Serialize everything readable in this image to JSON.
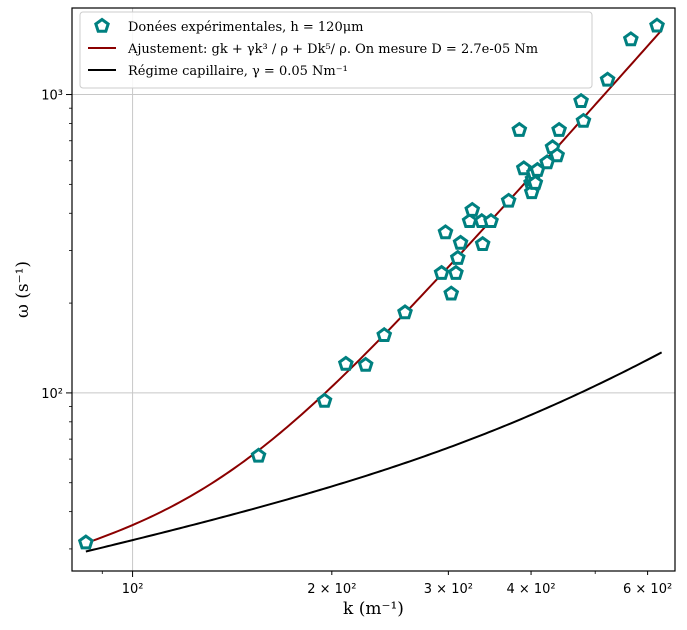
{
  "chart_data": {
    "type": "scatter",
    "xscale": "log",
    "yscale": "log",
    "xlim": [
      81,
      660
    ],
    "ylim": [
      25.3,
      1950
    ],
    "xlabel": "k (m⁻¹)",
    "ylabel": "ω (s⁻¹)",
    "grid": true,
    "legend_position": "top-left",
    "colors": {
      "points": "#008080",
      "fit": "#8b0000",
      "capillary": "#000000"
    },
    "x_ticks": [
      {
        "value": 100,
        "label": "10²"
      },
      {
        "value": 200,
        "label": "2 × 10²"
      },
      {
        "value": 300,
        "label": "3 × 10²"
      },
      {
        "value": 400,
        "label": "4 × 10²"
      },
      {
        "value": 600,
        "label": "6 × 10²"
      }
    ],
    "y_ticks": [
      {
        "value": 100,
        "label": "10²"
      },
      {
        "value": 1000,
        "label": "10³"
      }
    ],
    "series": [
      {
        "name": "Donées expérimentales, h = 120μm",
        "kind": "scatter",
        "marker": "pentagon",
        "points": [
          [
            85,
            31.5
          ],
          [
            155,
            61.5
          ],
          [
            195,
            94
          ],
          [
            210,
            125
          ],
          [
            225,
            124
          ],
          [
            240,
            156
          ],
          [
            258,
            186
          ],
          [
            293,
            252
          ],
          [
            297,
            345
          ],
          [
            303,
            215
          ],
          [
            308,
            252
          ],
          [
            310,
            283
          ],
          [
            313,
            318
          ],
          [
            323,
            376
          ],
          [
            326,
            410
          ],
          [
            337,
            376
          ],
          [
            338,
            315
          ],
          [
            348,
            376
          ],
          [
            370,
            440
          ],
          [
            384,
            760
          ],
          [
            390,
            565
          ],
          [
            400,
            505
          ],
          [
            401,
            470
          ],
          [
            402,
            520
          ],
          [
            404,
            545
          ],
          [
            406,
            505
          ],
          [
            409,
            558
          ],
          [
            423,
            592
          ],
          [
            431,
            665
          ],
          [
            438,
            625
          ],
          [
            441,
            760
          ],
          [
            476,
            950
          ],
          [
            480,
            815
          ],
          [
            522,
            1120
          ],
          [
            566,
            1530
          ],
          [
            620,
            1700
          ]
        ]
      },
      {
        "name": "Ajustement: gk + γk³ / ρ + Dk⁵/ ρ. On mesure D = 2.7e-05 Nm",
        "kind": "line",
        "params": {
          "g": 9.81,
          "gamma": 0.05,
          "rho": 1000,
          "D": 2.7e-05
        },
        "x_range": [
          85,
          630
        ]
      },
      {
        "name": "Régime capillaire, γ = 0.05 Nm⁻¹",
        "kind": "line",
        "params": {
          "g": 9.81,
          "gamma": 0.05,
          "rho": 1000,
          "D": 0
        },
        "x_range": [
          85,
          630
        ]
      }
    ]
  }
}
